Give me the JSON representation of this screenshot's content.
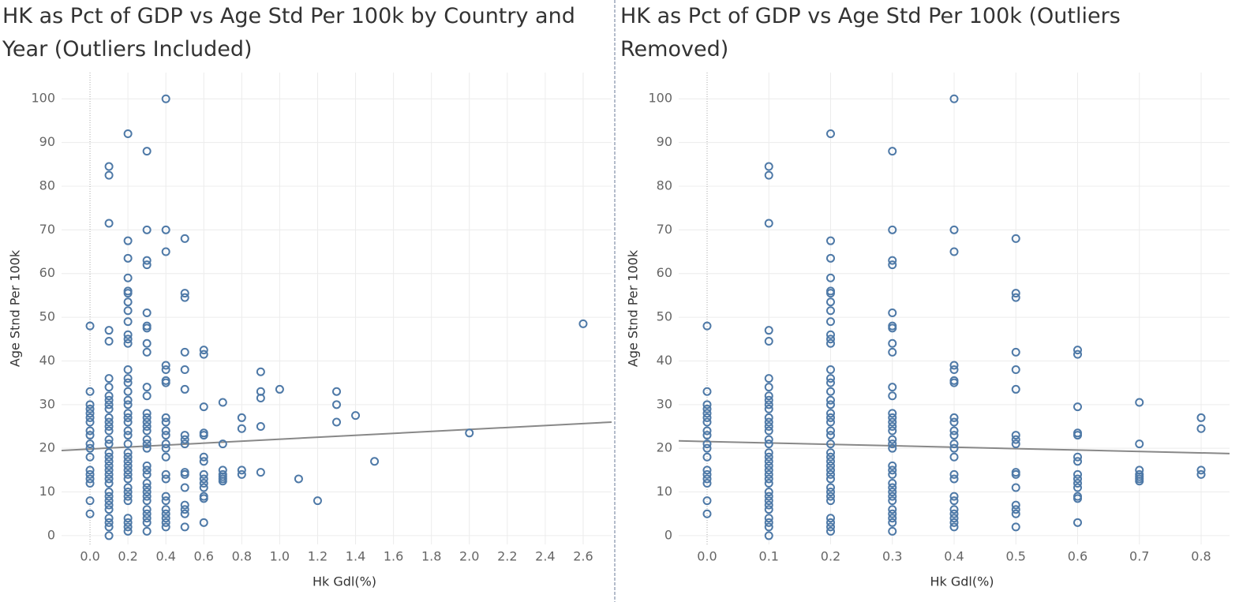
{
  "chart_data": [
    {
      "type": "scatter",
      "title": "HK as Pct of GDP vs Age Std Per 100k by Country and Year (Outliers Included)",
      "x_label": "Hk Gdl(%)",
      "y_label": "Age Stnd Per 100k",
      "color": "#4e79a7",
      "xlim": [
        -0.15,
        2.75
      ],
      "ylim": [
        -2,
        106
      ],
      "xticks": [
        {
          "value": 0,
          "label": "0.0"
        },
        0.2,
        0.4,
        0.6,
        0.8,
        {
          "value": 1,
          "label": "1.0"
        },
        1.2,
        1.4,
        1.6,
        1.8,
        {
          "value": 2,
          "label": "2.0"
        },
        2.2,
        2.4,
        2.6
      ],
      "yticks": [
        0,
        10,
        20,
        30,
        40,
        50,
        60,
        70,
        80,
        90,
        100
      ],
      "grid": true,
      "trendline": {
        "color": "#888888",
        "x": [
          -0.15,
          2.75
        ],
        "y": [
          19.5,
          26
        ]
      },
      "x": [
        0,
        0,
        0,
        0,
        0,
        0,
        0,
        0,
        0,
        0,
        0,
        0,
        0,
        0,
        0,
        0,
        0,
        0,
        0.1,
        0.1,
        0.1,
        0.1,
        0.1,
        0.1,
        0.1,
        0.1,
        0.1,
        0.1,
        0.1,
        0.1,
        0.1,
        0.1,
        0.1,
        0.1,
        0.1,
        0.1,
        0.1,
        0.1,
        0.1,
        0.1,
        0.1,
        0.1,
        0.1,
        0.1,
        0.1,
        0.1,
        0.1,
        0.1,
        0.1,
        0.1,
        0.1,
        0.1,
        0.2,
        0.2,
        0.2,
        0.2,
        0.2,
        0.2,
        0.2,
        0.2,
        0.2,
        0.2,
        0.2,
        0.2,
        0.2,
        0.2,
        0.2,
        0.2,
        0.2,
        0.2,
        0.2,
        0.2,
        0.2,
        0.2,
        0.2,
        0.2,
        0.2,
        0.2,
        0.2,
        0.2,
        0.2,
        0.2,
        0.2,
        0.2,
        0.2,
        0.2,
        0.2,
        0.2,
        0.2,
        0.2,
        0.2,
        0.3,
        0.3,
        0.3,
        0.3,
        0.3,
        0.3,
        0.3,
        0.3,
        0.3,
        0.3,
        0.3,
        0.3,
        0.3,
        0.3,
        0.3,
        0.3,
        0.3,
        0.3,
        0.3,
        0.3,
        0.3,
        0.3,
        0.3,
        0.3,
        0.3,
        0.3,
        0.3,
        0.3,
        0.3,
        0.3,
        0.3,
        0.3,
        0.4,
        0.4,
        0.4,
        0.4,
        0.4,
        0.4,
        0.4,
        0.4,
        0.4,
        0.4,
        0.4,
        0.4,
        0.4,
        0.4,
        0.4,
        0.4,
        0.4,
        0.4,
        0.4,
        0.4,
        0.4,
        0.4,
        0.4,
        0.5,
        0.5,
        0.5,
        0.5,
        0.5,
        0.5,
        0.5,
        0.5,
        0.5,
        0.5,
        0.5,
        0.5,
        0.5,
        0.5,
        0.5,
        0.5,
        0.6,
        0.6,
        0.6,
        0.6,
        0.6,
        0.6,
        0.6,
        0.6,
        0.6,
        0.6,
        0.6,
        0.6,
        0.6,
        0.6,
        0.7,
        0.7,
        0.7,
        0.7,
        0.7,
        0.7,
        0.7,
        0.8,
        0.8,
        0.8,
        0.8,
        0.9,
        0.9,
        0.9,
        0.9,
        0.9,
        1.0,
        1.1,
        1.2,
        1.3,
        1.3,
        1.3,
        1.4,
        1.5,
        2.0,
        2.6
      ],
      "y": [
        48,
        33,
        30,
        29,
        28,
        27,
        26,
        24,
        23,
        21,
        20,
        18,
        15,
        14,
        13,
        12,
        8,
        5,
        84.5,
        82.5,
        71.5,
        47,
        44.5,
        36,
        34,
        32,
        31,
        30,
        29,
        27,
        26,
        25,
        24,
        22,
        21,
        19,
        18,
        17,
        16,
        15,
        14,
        13,
        12,
        10,
        9,
        8,
        7,
        6,
        4,
        3,
        2,
        0,
        92,
        67.5,
        63.5,
        59,
        56,
        55.5,
        53.5,
        51.5,
        49,
        46,
        45,
        44,
        38,
        36,
        35,
        33,
        31,
        30,
        28,
        27,
        26,
        24,
        23,
        21,
        19,
        18,
        17,
        16,
        15,
        14,
        13,
        11,
        10,
        9,
        8,
        4,
        3,
        2,
        1,
        88,
        70,
        63,
        62,
        51,
        48,
        47.5,
        44,
        42,
        34,
        32,
        28,
        27,
        26,
        25,
        24,
        22,
        21,
        20,
        16,
        15,
        14,
        12,
        11,
        10,
        9,
        8,
        6,
        5,
        4,
        3,
        1,
        100,
        70,
        65,
        39,
        38,
        35.5,
        35,
        27,
        26,
        24,
        23,
        21,
        20,
        18,
        14,
        13,
        9,
        8,
        6,
        5,
        4,
        3,
        2,
        68,
        55.5,
        54.5,
        42,
        38,
        33.5,
        23,
        22,
        21,
        14.5,
        14,
        11,
        7,
        6,
        5,
        2,
        42.5,
        41.5,
        29.5,
        23.5,
        23,
        18,
        17,
        14,
        13,
        12,
        11,
        9,
        8.5,
        3,
        30.5,
        21,
        15,
        14,
        13.5,
        13,
        12.5,
        27,
        24.5,
        15,
        14,
        37.5,
        33,
        31.5,
        25,
        14.5,
        33.5,
        13,
        8,
        33,
        30,
        26,
        27.5,
        17,
        23.5,
        48.5
      ]
    },
    {
      "type": "scatter",
      "title": "HK as Pct of GDP vs Age Std Per 100k (Outliers Removed)",
      "x_label": "Hk Gdl(%)",
      "y_label": "Age Stnd Per 100k",
      "color": "#4e79a7",
      "xlim": [
        -0.046,
        0.846
      ],
      "ylim": [
        -2,
        106
      ],
      "xticks": [
        {
          "value": 0,
          "label": "0.0"
        },
        0.1,
        0.2,
        0.3,
        0.4,
        0.5,
        0.6,
        0.7,
        0.8
      ],
      "yticks": [
        0,
        10,
        20,
        30,
        40,
        50,
        60,
        70,
        80,
        90,
        100
      ],
      "grid": true,
      "trendline": {
        "color": "#888888",
        "x": [
          -0.046,
          0.846
        ],
        "y": [
          21.7,
          18.8
        ]
      },
      "x": [
        0,
        0,
        0,
        0,
        0,
        0,
        0,
        0,
        0,
        0,
        0,
        0,
        0,
        0,
        0,
        0,
        0,
        0,
        0.1,
        0.1,
        0.1,
        0.1,
        0.1,
        0.1,
        0.1,
        0.1,
        0.1,
        0.1,
        0.1,
        0.1,
        0.1,
        0.1,
        0.1,
        0.1,
        0.1,
        0.1,
        0.1,
        0.1,
        0.1,
        0.1,
        0.1,
        0.1,
        0.1,
        0.1,
        0.1,
        0.1,
        0.1,
        0.1,
        0.1,
        0.1,
        0.1,
        0.1,
        0.2,
        0.2,
        0.2,
        0.2,
        0.2,
        0.2,
        0.2,
        0.2,
        0.2,
        0.2,
        0.2,
        0.2,
        0.2,
        0.2,
        0.2,
        0.2,
        0.2,
        0.2,
        0.2,
        0.2,
        0.2,
        0.2,
        0.2,
        0.2,
        0.2,
        0.2,
        0.2,
        0.2,
        0.2,
        0.2,
        0.2,
        0.2,
        0.2,
        0.2,
        0.2,
        0.2,
        0.2,
        0.2,
        0.2,
        0.3,
        0.3,
        0.3,
        0.3,
        0.3,
        0.3,
        0.3,
        0.3,
        0.3,
        0.3,
        0.3,
        0.3,
        0.3,
        0.3,
        0.3,
        0.3,
        0.3,
        0.3,
        0.3,
        0.3,
        0.3,
        0.3,
        0.3,
        0.3,
        0.3,
        0.3,
        0.3,
        0.3,
        0.3,
        0.3,
        0.3,
        0.3,
        0.4,
        0.4,
        0.4,
        0.4,
        0.4,
        0.4,
        0.4,
        0.4,
        0.4,
        0.4,
        0.4,
        0.4,
        0.4,
        0.4,
        0.4,
        0.4,
        0.4,
        0.4,
        0.4,
        0.4,
        0.4,
        0.4,
        0.4,
        0.5,
        0.5,
        0.5,
        0.5,
        0.5,
        0.5,
        0.5,
        0.5,
        0.5,
        0.5,
        0.5,
        0.5,
        0.5,
        0.5,
        0.5,
        0.5,
        0.6,
        0.6,
        0.6,
        0.6,
        0.6,
        0.6,
        0.6,
        0.6,
        0.6,
        0.6,
        0.6,
        0.6,
        0.6,
        0.6,
        0.7,
        0.7,
        0.7,
        0.7,
        0.7,
        0.7,
        0.7,
        0.8,
        0.8,
        0.8,
        0.8
      ],
      "y": [
        48,
        33,
        30,
        29,
        28,
        27,
        26,
        24,
        23,
        21,
        20,
        18,
        15,
        14,
        13,
        12,
        8,
        5,
        84.5,
        82.5,
        71.5,
        47,
        44.5,
        36,
        34,
        32,
        31,
        30,
        29,
        27,
        26,
        25,
        24,
        22,
        21,
        19,
        18,
        17,
        16,
        15,
        14,
        13,
        12,
        10,
        9,
        8,
        7,
        6,
        4,
        3,
        2,
        0,
        92,
        67.5,
        63.5,
        59,
        56,
        55.5,
        53.5,
        51.5,
        49,
        46,
        45,
        44,
        38,
        36,
        35,
        33,
        31,
        30,
        28,
        27,
        26,
        24,
        23,
        21,
        19,
        18,
        17,
        16,
        15,
        14,
        13,
        11,
        10,
        9,
        8,
        4,
        3,
        2,
        1,
        88,
        70,
        63,
        62,
        51,
        48,
        47.5,
        44,
        42,
        34,
        32,
        28,
        27,
        26,
        25,
        24,
        22,
        21,
        20,
        16,
        15,
        14,
        12,
        11,
        10,
        9,
        8,
        6,
        5,
        4,
        3,
        1,
        100,
        70,
        65,
        39,
        38,
        35.5,
        35,
        27,
        26,
        24,
        23,
        21,
        20,
        18,
        14,
        13,
        9,
        8,
        6,
        5,
        4,
        3,
        2,
        68,
        55.5,
        54.5,
        42,
        38,
        33.5,
        23,
        22,
        21,
        14.5,
        14,
        11,
        7,
        6,
        5,
        2,
        42.5,
        41.5,
        29.5,
        23.5,
        23,
        18,
        17,
        14,
        13,
        12,
        11,
        9,
        8.5,
        3,
        30.5,
        21,
        15,
        14,
        13.5,
        13,
        12.5,
        27,
        24.5,
        15,
        14
      ]
    }
  ]
}
